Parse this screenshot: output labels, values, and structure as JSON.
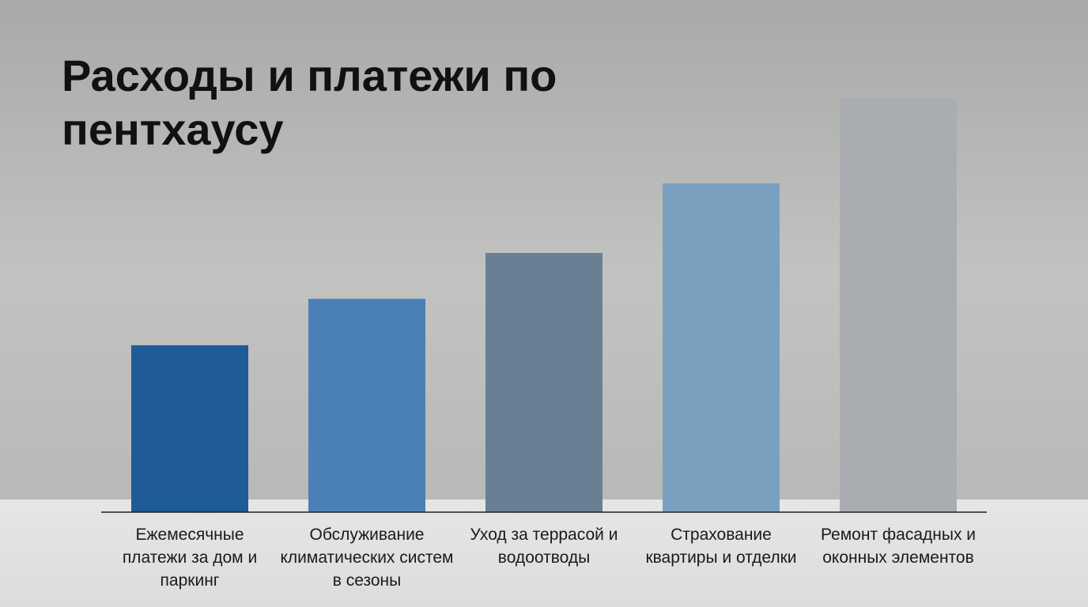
{
  "chart_data": {
    "type": "bar",
    "title": "Расходы и платежи по пентхаусу",
    "categories": [
      "Ежемесячные платежи за дом и паркинг",
      "Обслуживание климатических систем в сезоны",
      "Уход за террасой и водоотводы",
      "Страхование квартиры и отделки",
      "Ремонт фасадных и оконных элементов"
    ],
    "values": [
      40.3,
      51.5,
      62.6,
      79.4,
      100
    ],
    "colors": [
      "#1f5a99",
      "#4a80b6",
      "#6a7f94",
      "#7aa0c0",
      "#a9adb2"
    ],
    "ylim": [
      0,
      100
    ]
  }
}
